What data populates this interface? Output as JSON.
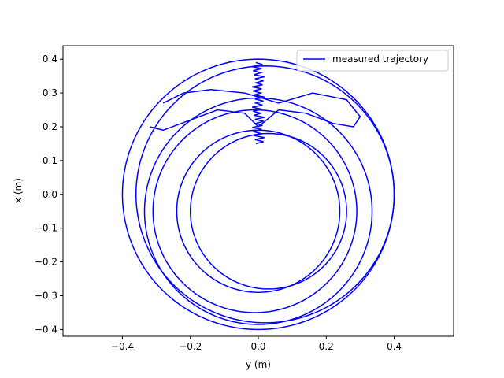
{
  "chart_data": {
    "type": "line",
    "title": "",
    "xlabel": "y (m)",
    "ylabel": "x (m)",
    "xlim": [
      -0.575,
      0.575
    ],
    "ylim": [
      0.44,
      -0.42
    ],
    "y_axis_inverted": true,
    "xticks": [
      "−0.4",
      "−0.2",
      "0.0",
      "0.2",
      "0.4"
    ],
    "yticks": [
      "−0.4",
      "−0.3",
      "−0.2",
      "−0.1",
      "0.0",
      "0.1",
      "0.2",
      "0.3",
      "0.4"
    ],
    "grid": false,
    "legend_position": "top-right",
    "series": [
      {
        "name": "measured trajectory",
        "color": "#0000ff",
        "loops": [
          {
            "cx": 0.0,
            "cy": 0.0,
            "r": 0.4
          },
          {
            "cx": 0.02,
            "cy": 0.0,
            "r": 0.38
          },
          {
            "cx": 0.0,
            "cy": -0.05,
            "r": 0.335
          },
          {
            "cx": -0.01,
            "cy": -0.05,
            "r": 0.3
          },
          {
            "cx": 0.0,
            "cy": -0.05,
            "r": 0.24
          },
          {
            "cx": 0.03,
            "cy": -0.05,
            "r": 0.23
          }
        ],
        "x": [
          -0.32,
          -0.28,
          -0.2,
          -0.12,
          -0.04,
          0.0,
          0.06,
          0.14,
          0.22,
          0.28,
          0.3,
          0.26,
          0.16,
          0.06,
          -0.04,
          -0.14,
          -0.22,
          -0.28
        ],
        "y": [
          0.2,
          0.19,
          0.22,
          0.25,
          0.24,
          0.2,
          0.25,
          0.24,
          0.21,
          0.2,
          0.23,
          0.28,
          0.3,
          0.27,
          0.3,
          0.31,
          0.3,
          0.27
        ]
      }
    ],
    "spike": {
      "x_center": 0.0,
      "y_top": 0.15,
      "y_bottom": 0.39,
      "half_width": 0.018
    }
  }
}
